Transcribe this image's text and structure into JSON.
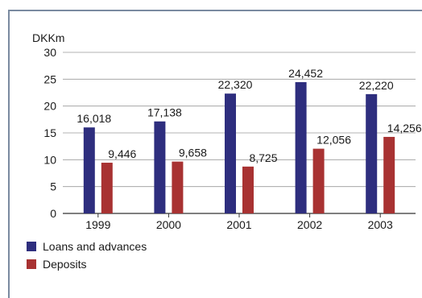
{
  "chart_data": {
    "type": "bar",
    "ylabel": "DKKm",
    "ylim": [
      0,
      30
    ],
    "yticks": [
      0,
      5,
      10,
      15,
      20,
      25,
      30
    ],
    "grid": true,
    "legend_position": "bottom-left",
    "categories": [
      "1999",
      "2000",
      "2001",
      "2002",
      "2003"
    ],
    "series": [
      {
        "name": "Loans and advances",
        "color": "#2e2e7e",
        "values": [
          16018,
          17138,
          22320,
          24452,
          22220
        ],
        "labels": [
          "16,018",
          "17,138",
          "22,320",
          "24,452",
          "22,220"
        ]
      },
      {
        "name": "Deposits",
        "color": "#a83232",
        "values": [
          9446,
          9658,
          8725,
          12056,
          14256
        ],
        "labels": [
          "9,446",
          "9,658",
          "8,725",
          "12,056",
          "14,256"
        ]
      }
    ]
  }
}
